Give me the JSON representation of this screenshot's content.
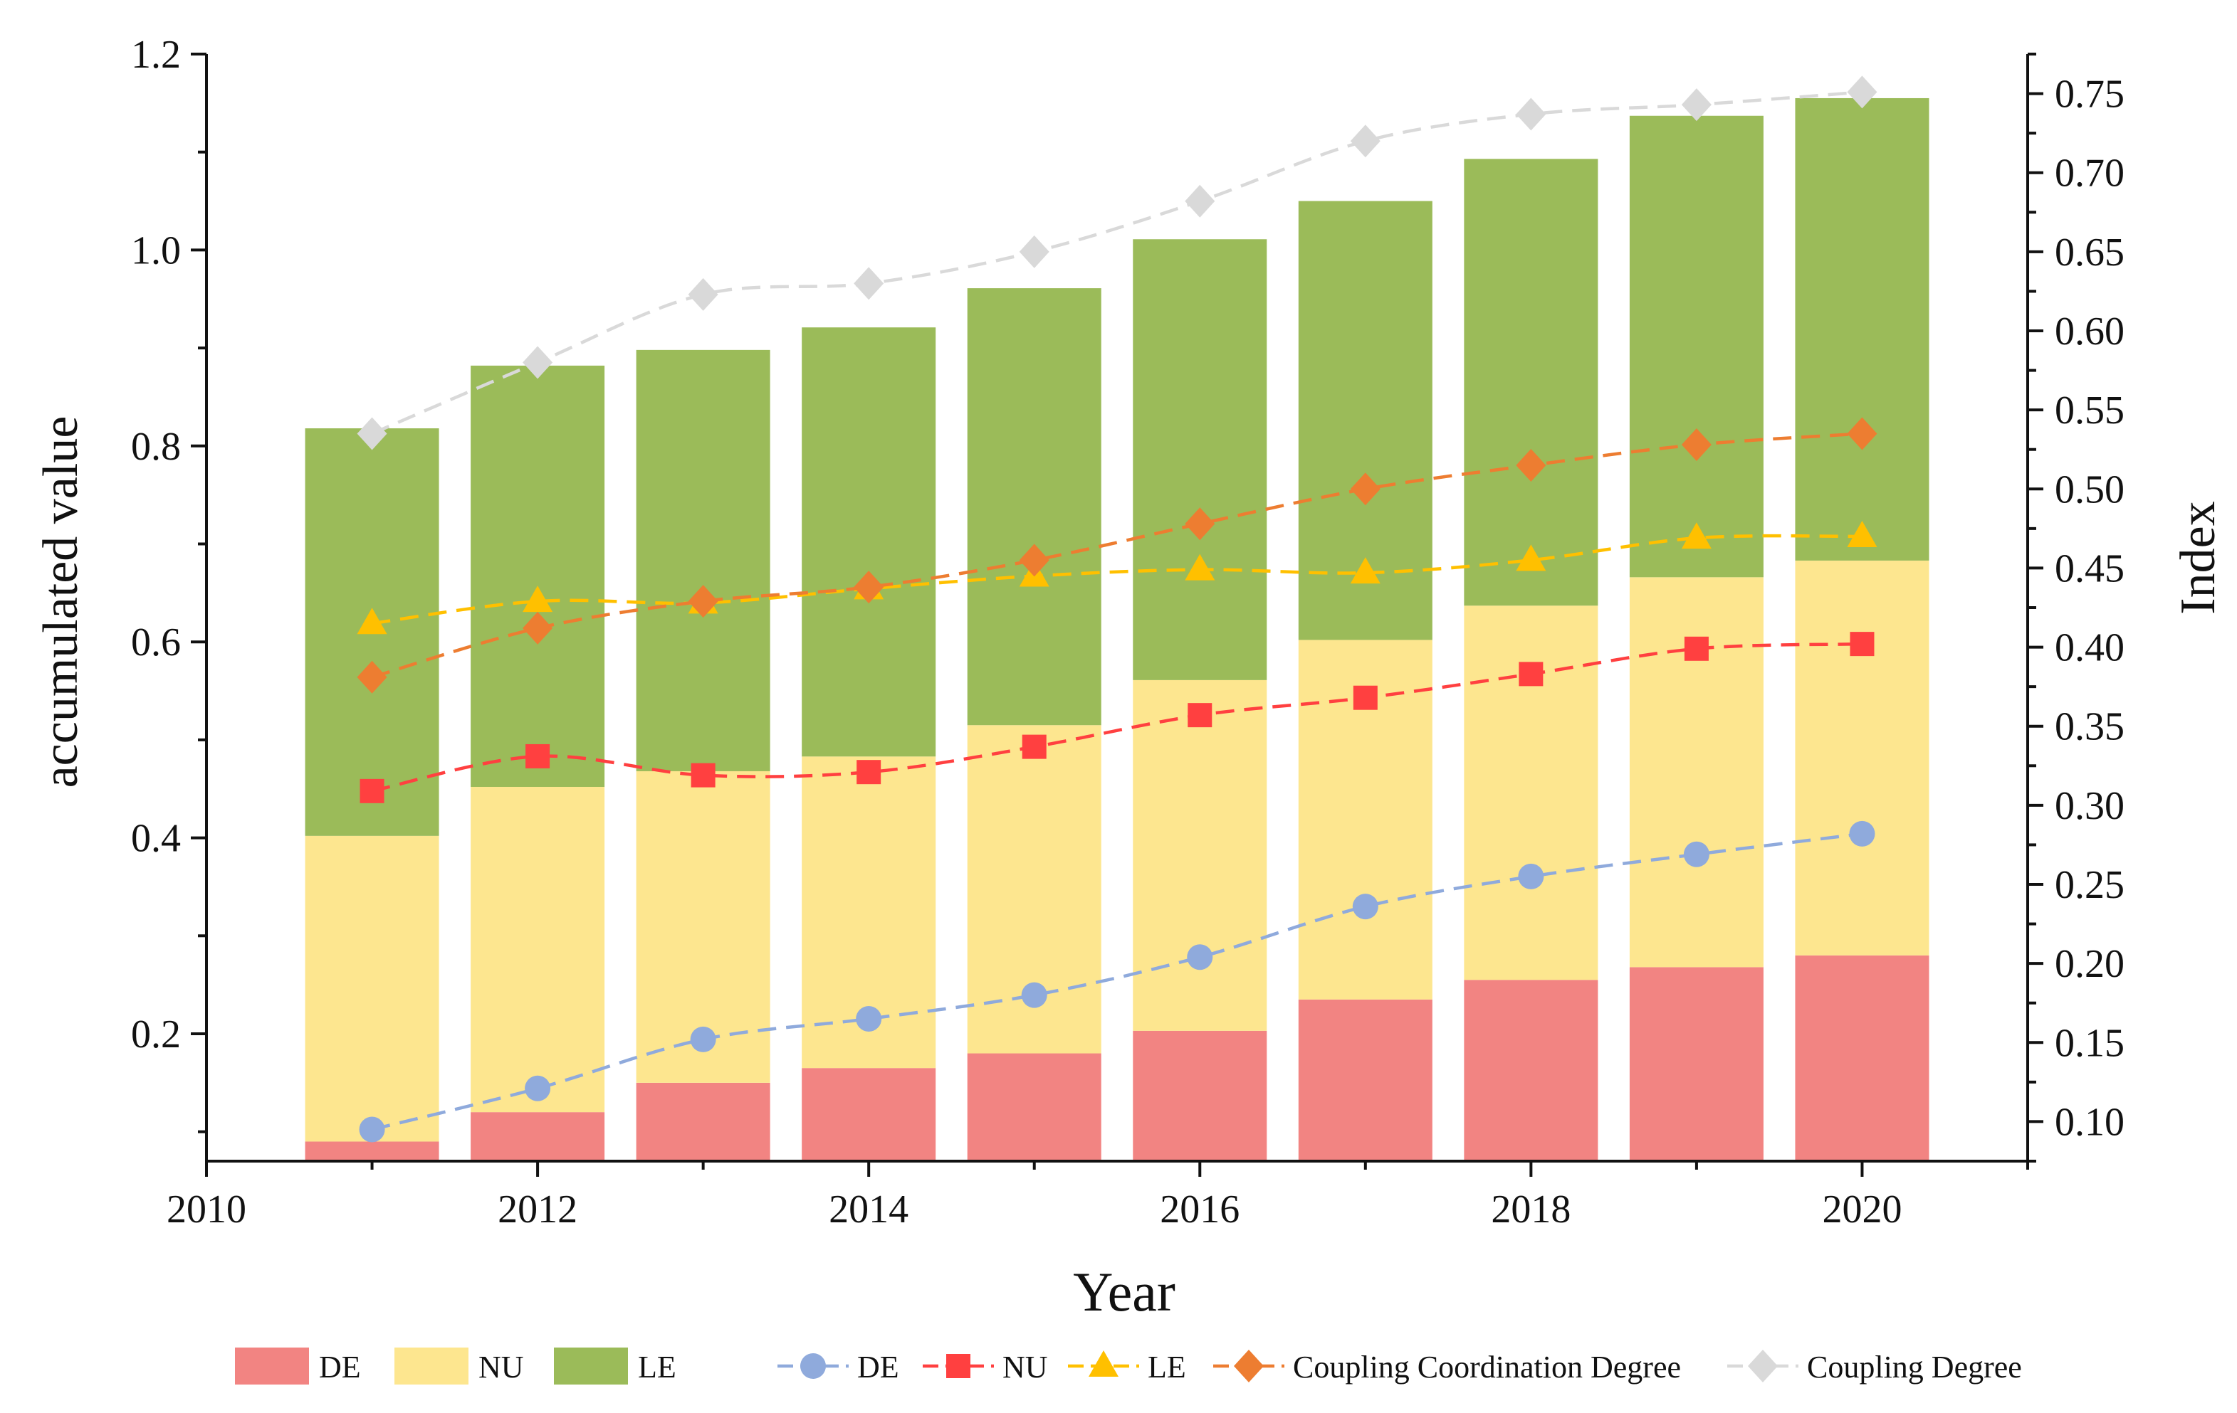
{
  "chart_data": {
    "type": "bar+line",
    "title": "",
    "xlabel": "Year",
    "ylabel_left": "accumulated value",
    "ylabel_right": "Index",
    "xlim": [
      2010,
      2021
    ],
    "ylim_left": [
      0.07,
      1.2
    ],
    "ylim_right": [
      0.075,
      0.775
    ],
    "x_ticks": [
      "2010",
      "2012",
      "2014",
      "2016",
      "2018",
      "2020"
    ],
    "left_ticks": [
      "0.2",
      "0.4",
      "0.6",
      "0.8",
      "1.0",
      "1.2"
    ],
    "right_ticks": [
      "0.10",
      "0.15",
      "0.20",
      "0.25",
      "0.30",
      "0.35",
      "0.40",
      "0.45",
      "0.50",
      "0.55",
      "0.60",
      "0.65",
      "0.70",
      "0.75"
    ],
    "years": [
      2011,
      2012,
      2013,
      2014,
      2015,
      2016,
      2017,
      2018,
      2019,
      2020
    ],
    "stacked_bars": [
      {
        "name": "DE",
        "color": "#f28482",
        "values": [
          0.09,
          0.12,
          0.15,
          0.165,
          0.18,
          0.203,
          0.235,
          0.255,
          0.268,
          0.28
        ]
      },
      {
        "name": "NU",
        "color": "#fde68f",
        "values": [
          0.312,
          0.332,
          0.318,
          0.318,
          0.335,
          0.358,
          0.367,
          0.382,
          0.398,
          0.403
        ]
      },
      {
        "name": "LE",
        "color": "#9bbb59",
        "values": [
          0.416,
          0.43,
          0.43,
          0.438,
          0.446,
          0.45,
          0.448,
          0.456,
          0.471,
          0.472
        ]
      }
    ],
    "lines": [
      {
        "name": "DE",
        "color": "#8faadc",
        "marker": "circle",
        "values": [
          0.095,
          0.121,
          0.152,
          0.165,
          0.18,
          0.204,
          0.236,
          0.255,
          0.269,
          0.282
        ]
      },
      {
        "name": "NU",
        "color": "#ff4040",
        "marker": "square",
        "values": [
          0.309,
          0.331,
          0.319,
          0.321,
          0.337,
          0.357,
          0.368,
          0.383,
          0.399,
          0.402
        ]
      },
      {
        "name": "LE",
        "color": "#ffc000",
        "marker": "triangle",
        "values": [
          0.415,
          0.429,
          0.428,
          0.437,
          0.445,
          0.449,
          0.447,
          0.455,
          0.469,
          0.47
        ]
      },
      {
        "name": "Coupling Coordination Degree",
        "color": "#ed7d31",
        "marker": "diamond",
        "values": [
          0.381,
          0.412,
          0.429,
          0.438,
          0.455,
          0.478,
          0.5,
          0.515,
          0.528,
          0.535
        ]
      },
      {
        "name": "Coupling Degree",
        "color": "#d9d9d9",
        "marker": "diamond",
        "values": [
          0.535,
          0.58,
          0.623,
          0.63,
          0.65,
          0.682,
          0.72,
          0.737,
          0.743,
          0.751
        ]
      }
    ],
    "legend_position": "bottom",
    "grid": false
  }
}
